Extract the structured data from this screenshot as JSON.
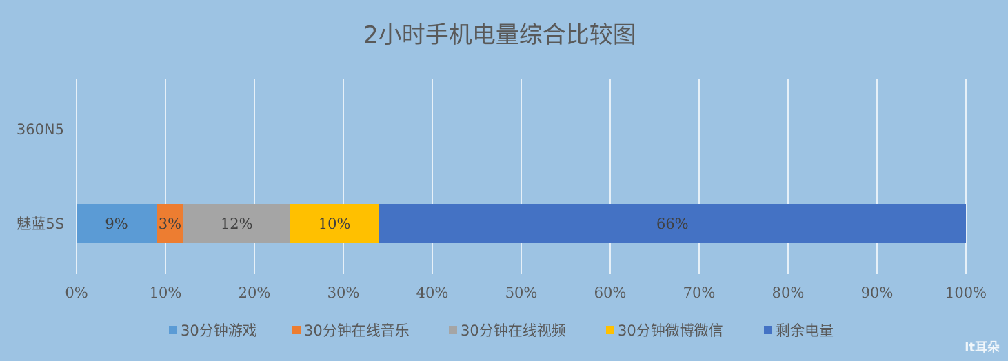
{
  "chart_data": {
    "type": "bar",
    "orientation": "horizontal",
    "stacked": "percent",
    "title": "2小时手机电量综合比较图",
    "categories": [
      "360N5",
      "魅蓝5S"
    ],
    "series": [
      {
        "name": "30分钟游戏",
        "color": "#5b9bd5",
        "values": [
          null,
          9
        ],
        "labels": [
          "",
          "9%"
        ]
      },
      {
        "name": "30分钟在线音乐",
        "color": "#ed7d31",
        "values": [
          null,
          3
        ],
        "labels": [
          "",
          "3%"
        ]
      },
      {
        "name": "30分钟在线视频",
        "color": "#a5a5a5",
        "values": [
          null,
          12
        ],
        "labels": [
          "",
          "12%"
        ]
      },
      {
        "name": "30分钟微博微信",
        "color": "#ffc000",
        "values": [
          null,
          10
        ],
        "labels": [
          "",
          "10%"
        ]
      },
      {
        "name": "剩余电量",
        "color": "#4472c4",
        "values": [
          null,
          66
        ],
        "labels": [
          "",
          "66%"
        ]
      }
    ],
    "xlim": [
      0,
      100
    ],
    "xticks": [
      "0%",
      "10%",
      "20%",
      "30%",
      "40%",
      "50%",
      "60%",
      "70%",
      "80%",
      "90%",
      "100%"
    ],
    "grid": true,
    "legend_position": "bottom"
  },
  "watermark": "it耳朵"
}
